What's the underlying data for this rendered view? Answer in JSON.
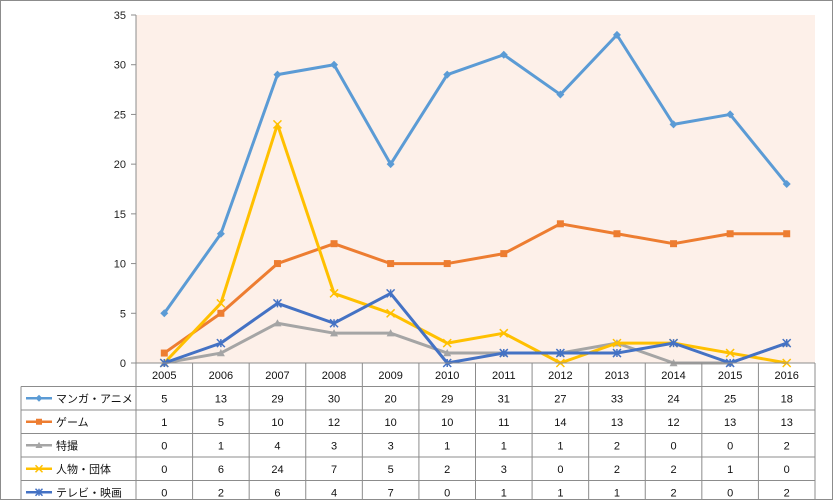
{
  "chart_data": {
    "type": "line",
    "categories": [
      "2005",
      "2006",
      "2007",
      "2008",
      "2009",
      "2010",
      "2011",
      "2012",
      "2013",
      "2014",
      "2015",
      "2016"
    ],
    "ylim": [
      0,
      35
    ],
    "yticks": [
      0,
      5,
      10,
      15,
      20,
      25,
      30,
      35
    ],
    "grid": false,
    "plot_background": "#fdf0e9",
    "legend": "data-table-left",
    "series": [
      {
        "name": "マンガ・アニメ",
        "color": "#5b9bd5",
        "marker": "diamond",
        "values": [
          5,
          13,
          29,
          30,
          20,
          29,
          31,
          27,
          33,
          24,
          25,
          18
        ]
      },
      {
        "name": "ゲーム",
        "color": "#ed7d31",
        "marker": "square",
        "values": [
          1,
          5,
          10,
          12,
          10,
          10,
          11,
          14,
          13,
          12,
          13,
          13
        ]
      },
      {
        "name": "特撮",
        "color": "#a5a5a5",
        "marker": "triangle",
        "values": [
          0,
          1,
          4,
          3,
          3,
          1,
          1,
          1,
          2,
          0,
          0,
          2
        ]
      },
      {
        "name": "人物・団体",
        "color": "#ffc000",
        "marker": "x",
        "values": [
          0,
          6,
          24,
          7,
          5,
          2,
          3,
          0,
          2,
          2,
          1,
          0
        ]
      },
      {
        "name": "テレビ・映画",
        "color": "#4472c4",
        "marker": "star",
        "values": [
          0,
          2,
          6,
          4,
          7,
          0,
          1,
          1,
          1,
          2,
          0,
          2
        ]
      }
    ]
  }
}
